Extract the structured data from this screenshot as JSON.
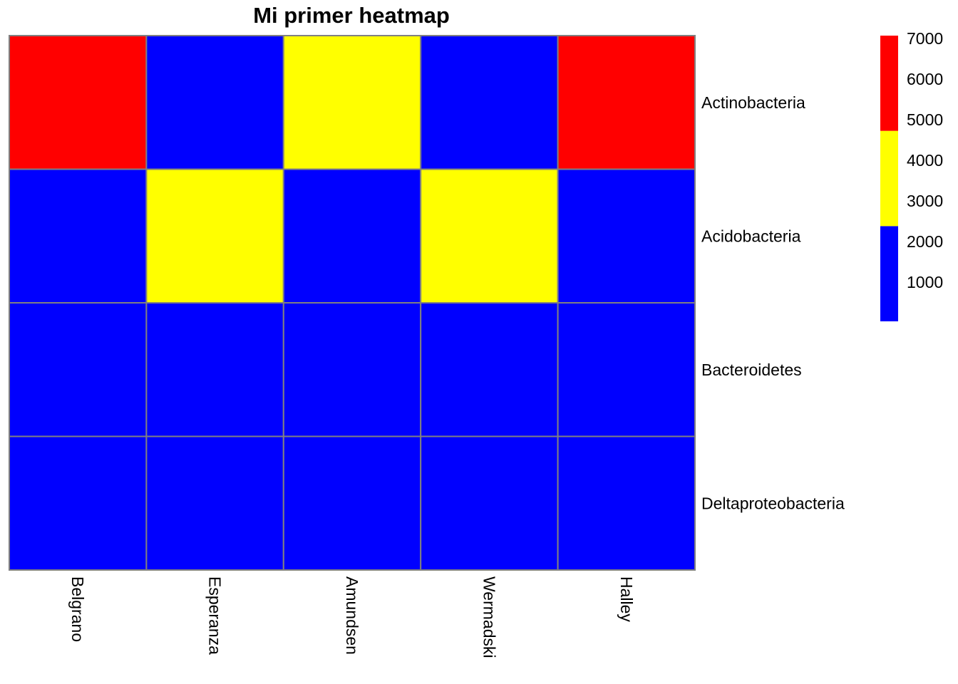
{
  "chart_data": {
    "type": "heatmap",
    "title": "Mi primer heatmap",
    "columns": [
      "Belgrano",
      "Esperanza",
      "Amundsen",
      "Wermadski",
      "Halley"
    ],
    "rows": [
      "Actinobacteria",
      "Acidobacteria",
      "Bacteroidetes",
      "Deltaproteobacteria"
    ],
    "values": [
      [
        6000,
        1000,
        4000,
        1000,
        6000
      ],
      [
        1000,
        4000,
        1000,
        4000,
        1000
      ],
      [
        1000,
        1000,
        1000,
        1000,
        1000
      ],
      [
        1000,
        1000,
        1000,
        1000,
        1000
      ]
    ],
    "legend": {
      "placement": "right",
      "range": [
        0,
        7000
      ],
      "ticks": [
        "7000",
        "6000",
        "5000",
        "4000",
        "3000",
        "2000",
        "1000"
      ],
      "bins": [
        {
          "from": 0,
          "to": 2333,
          "color": "#0000ff"
        },
        {
          "from": 2333,
          "to": 4667,
          "color": "#ffff00"
        },
        {
          "from": 4667,
          "to": 7000,
          "color": "#ff0000"
        }
      ]
    },
    "cell_border_color": "#808080"
  }
}
